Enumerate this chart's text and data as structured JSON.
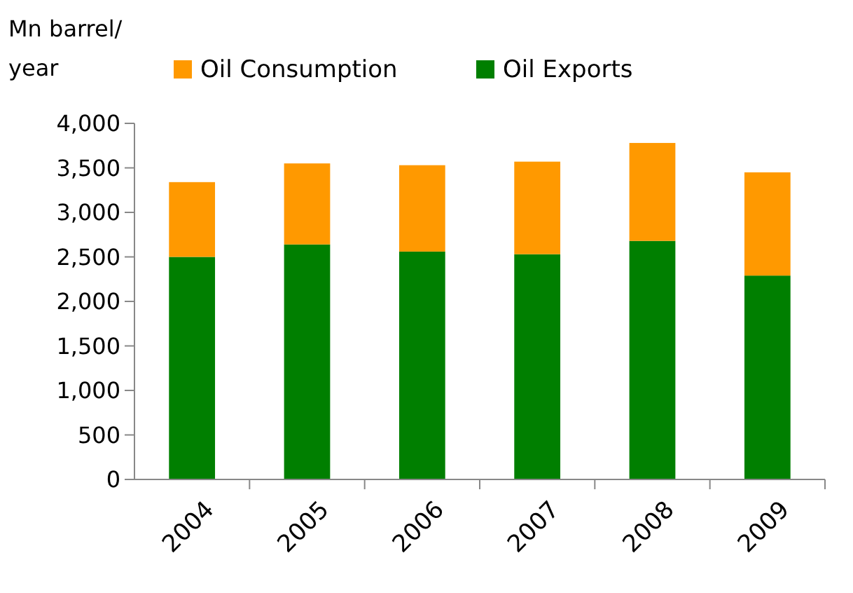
{
  "chart_data": {
    "type": "bar",
    "stacked": true,
    "ylabel": "Mn barrel/ year",
    "categories": [
      "2004",
      "2005",
      "2006",
      "2007",
      "2008",
      "2009"
    ],
    "series": [
      {
        "name": "Oil Exports",
        "color": "#007f00",
        "values": [
          2500,
          2640,
          2560,
          2530,
          2680,
          2290
        ]
      },
      {
        "name": "Oil Consumption",
        "color": "#ff9900",
        "values": [
          840,
          910,
          970,
          1040,
          1100,
          1160
        ]
      }
    ],
    "ylim": [
      0,
      4000
    ],
    "yticks": [
      0,
      500,
      {
        "value": 1000,
        "label": "1,000"
      },
      {
        "value": 1500,
        "label": "1,500"
      },
      {
        "value": 2000,
        "label": "2,000"
      },
      {
        "value": 2500,
        "label": "2,500"
      },
      {
        "value": 3000,
        "label": "3,000"
      },
      {
        "value": 3500,
        "label": "3,500"
      },
      {
        "value": 4000,
        "label": "4,000"
      }
    ],
    "grid": false,
    "legend": "top"
  }
}
